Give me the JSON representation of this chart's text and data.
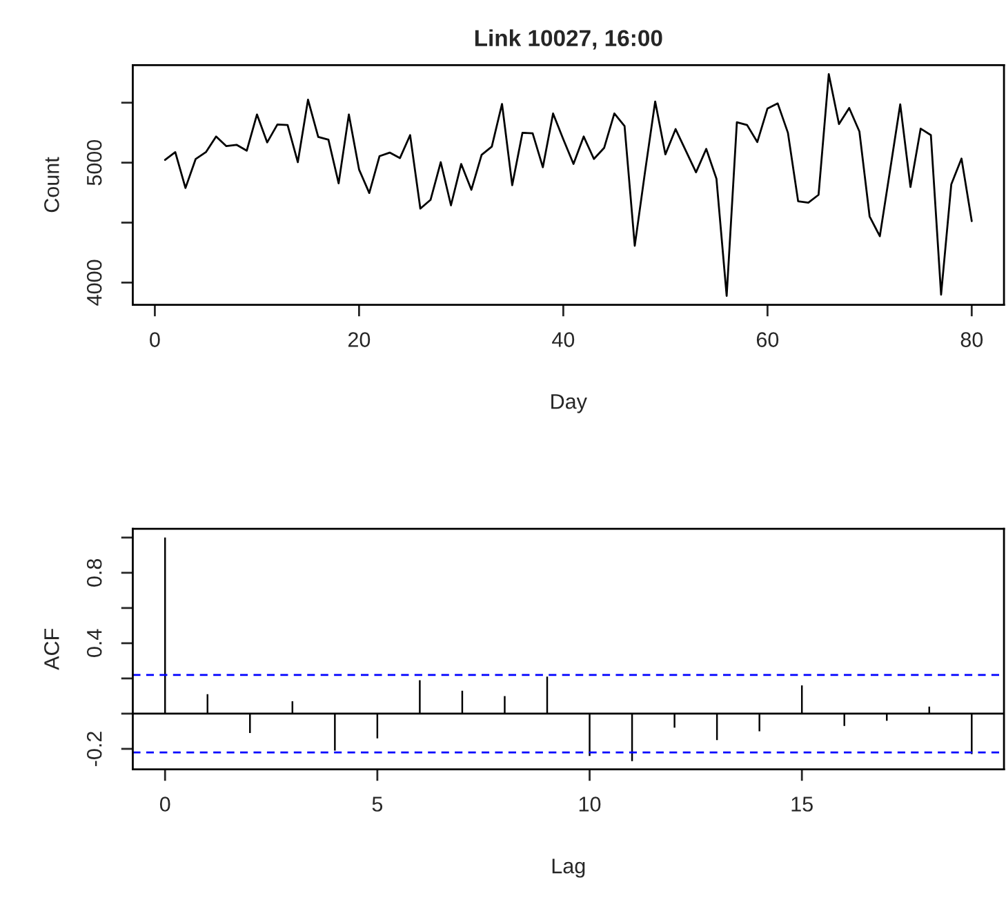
{
  "chart_data": [
    {
      "type": "line",
      "title": "Link 10027, 16:00",
      "xlabel": "Day",
      "ylabel": "Count",
      "x": [
        1,
        2,
        3,
        4,
        5,
        6,
        7,
        8,
        9,
        10,
        11,
        12,
        13,
        14,
        15,
        16,
        17,
        18,
        19,
        20,
        21,
        22,
        23,
        24,
        25,
        26,
        27,
        28,
        29,
        30,
        31,
        32,
        33,
        34,
        35,
        36,
        37,
        38,
        39,
        40,
        41,
        42,
        43,
        44,
        45,
        46,
        47,
        48,
        49,
        50,
        51,
        52,
        53,
        54,
        55,
        56,
        57,
        58,
        59,
        60,
        61,
        62,
        63,
        64,
        65,
        66,
        67,
        68,
        69,
        70,
        71,
        72,
        73,
        74,
        75,
        76,
        77,
        78,
        79,
        80
      ],
      "series": [
        {
          "color": "#000000",
          "values": [
            5023,
            5088,
            4789,
            5031,
            5088,
            5218,
            5138,
            5149,
            5100,
            5402,
            5169,
            5318,
            5314,
            5004,
            5525,
            5215,
            5192,
            4828,
            5402,
            4943,
            4747,
            5054,
            5084,
            5038,
            5230,
            4617,
            4690,
            5004,
            4644,
            4989,
            4774,
            5065,
            5134,
            5490,
            4812,
            5249,
            5245,
            4962,
            5410,
            5195,
            4989,
            5218,
            5031,
            5123,
            5410,
            5306,
            4307,
            4920,
            5510,
            5069,
            5280,
            5100,
            4920,
            5115,
            4866,
            3889,
            5337,
            5314,
            5172,
            5452,
            5494,
            5249,
            4678,
            4667,
            4732,
            5739,
            5322,
            5456,
            5260,
            4552,
            4387,
            4935,
            5487,
            4797,
            5284,
            5230,
            3900,
            4820,
            5034,
            4513
          ]
        }
      ],
      "xlim": [
        -2.16,
        83.16
      ],
      "ylim": [
        3815,
        5813
      ],
      "xticks": [
        0,
        20,
        40,
        60,
        80
      ],
      "yticks": [
        4000,
        {
          "value": 4500,
          "label": null
        },
        5000,
        {
          "value": 5500,
          "label": null
        }
      ],
      "grid": false,
      "legend": false,
      "marker": "none",
      "line_style": "solid"
    },
    {
      "type": "bar",
      "xlabel": "Lag",
      "ylabel": "ACF",
      "x": [
        0,
        1,
        2,
        3,
        4,
        5,
        6,
        7,
        8,
        9,
        10,
        11,
        12,
        13,
        14,
        15,
        16,
        17,
        18,
        19
      ],
      "series": [
        {
          "color": "#000000",
          "values": [
            1.0,
            0.11,
            -0.11,
            0.07,
            -0.21,
            -0.14,
            0.19,
            0.13,
            0.1,
            0.21,
            -0.24,
            -0.27,
            -0.08,
            -0.15,
            -0.1,
            0.16,
            -0.07,
            -0.04,
            0.04,
            -0.23
          ]
        }
      ],
      "xlim": [
        -0.76,
        19.76
      ],
      "ylim": [
        -0.316,
        1.05
      ],
      "xticks": [
        0,
        5,
        10,
        15
      ],
      "yticks": [
        -0.2,
        {
          "value": 0.0,
          "label": null
        },
        {
          "value": 0.2,
          "label": null
        },
        0.4,
        {
          "value": 0.6,
          "label": null
        },
        0.8,
        {
          "value": 1.0,
          "label": null
        }
      ],
      "ref_lines": [
        {
          "axis": "y",
          "value": 0,
          "color": "#000000",
          "line_style": "solid"
        },
        {
          "axis": "y",
          "value": 0.22,
          "color": "#0000ff",
          "line_style": "dashed"
        },
        {
          "axis": "y",
          "value": -0.22,
          "color": "#0000ff",
          "line_style": "dashed"
        }
      ],
      "grid": false,
      "legend": false
    }
  ]
}
